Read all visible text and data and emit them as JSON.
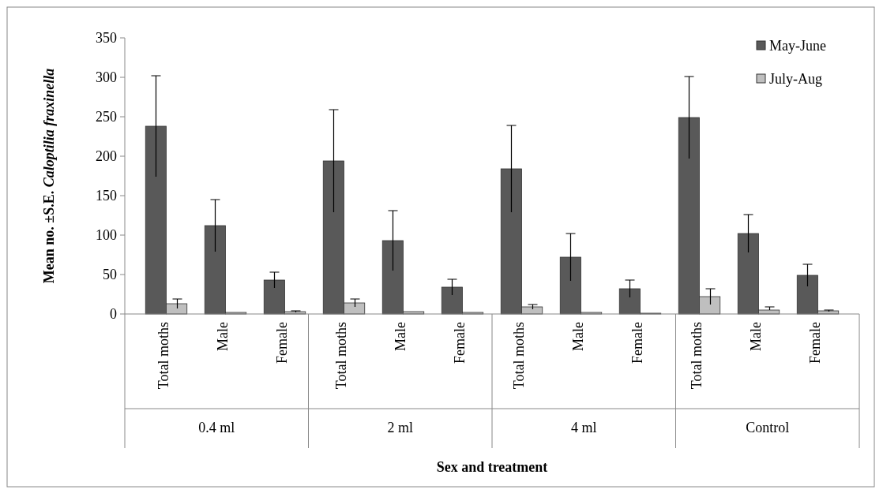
{
  "chart_data": {
    "type": "bar",
    "xlabel": "Sex and treatment",
    "ylabel": "Mean no. ±S.E. Caloptilia fraxinella",
    "categories": [
      "Total moths",
      "Male",
      "Female",
      "Total moths",
      "Male",
      "Female",
      "Total moths",
      "Male",
      "Female",
      "Total moths",
      "Male",
      "Female"
    ],
    "annotations": [
      "0.4 ml",
      "2 ml",
      "4 ml",
      "Control"
    ],
    "series": [
      {
        "name": "May-June",
        "color": "#595959",
        "values": [
          238,
          112,
          43,
          194,
          93,
          34,
          184,
          72,
          32,
          249,
          102,
          49
        ],
        "errors": [
          64,
          33,
          10,
          65,
          38,
          10,
          55,
          30,
          11,
          52,
          24,
          14
        ]
      },
      {
        "name": "July-Aug",
        "color": "#bfbfbf",
        "values": [
          13,
          2,
          3,
          14,
          3,
          2,
          9,
          2,
          1,
          22,
          5,
          4
        ],
        "errors": [
          6,
          null,
          1,
          5,
          null,
          null,
          3,
          null,
          null,
          10,
          [
            5,
            9
          ],
          1
        ]
      }
    ],
    "ylim": [
      0,
      350
    ],
    "yticks": [
      0,
      50,
      100,
      150,
      200,
      250,
      300,
      350
    ],
    "legend": "top right",
    "grid": false
  }
}
